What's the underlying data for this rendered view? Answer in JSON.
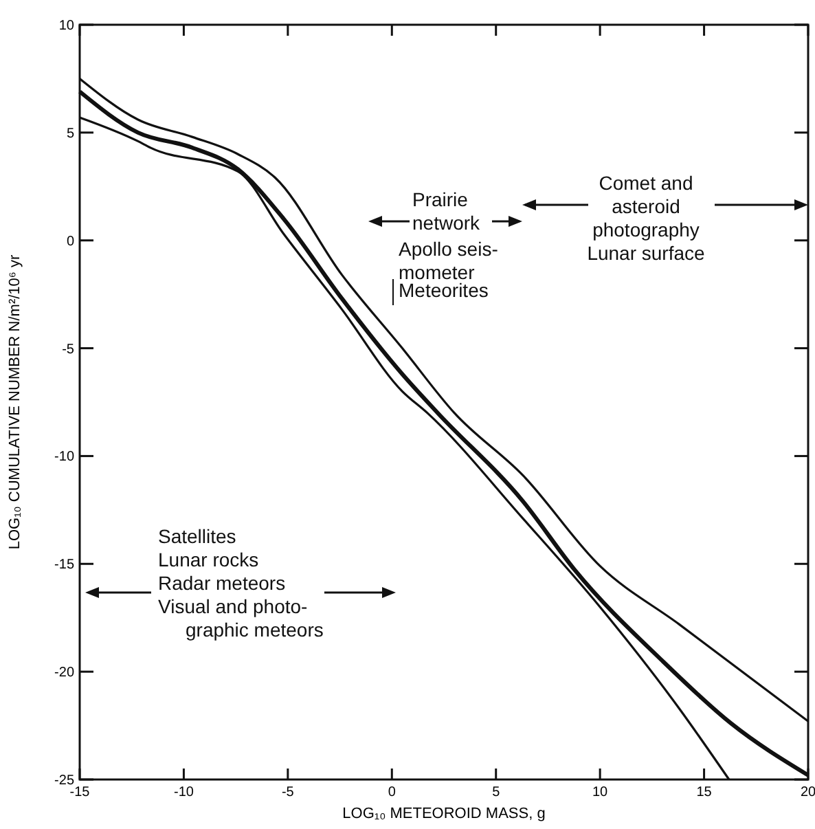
{
  "chart_data": {
    "type": "line",
    "xlabel": "LOG₁₀ METEOROID MASS, g",
    "ylabel": "LOG₁₀ CUMULATIVE NUMBER N/m²/10⁶ yr",
    "xlim": [
      -15,
      20
    ],
    "ylim": [
      -25,
      10
    ],
    "xticks": [
      -15,
      -10,
      -5,
      0,
      5,
      10,
      15,
      20
    ],
    "yticks": [
      -25,
      -20,
      -15,
      -10,
      -5,
      0,
      5,
      10
    ],
    "grid": false,
    "marker": "none",
    "line_style": "solid",
    "series": [
      {
        "color": "#111111",
        "x": [
          -15,
          -12.2,
          -9.6,
          -7.4,
          -5.6,
          -2.4,
          0.5,
          3,
          6.3,
          10,
          13.8,
          20
        ],
        "values": [
          7.5,
          5.6,
          4.8,
          4.0,
          2.9,
          -1.6,
          -5.0,
          -8.0,
          -10.9,
          -15.1,
          -17.8,
          -22.3
        ]
      },
      {
        "color": "#111111",
        "x": [
          -15,
          -12.2,
          -9.6,
          -7.4,
          -5.2,
          -2.4,
          0.5,
          2.2,
          6.3,
          8.8,
          13,
          16.3,
          20
        ],
        "values": [
          6.9,
          5.0,
          4.3,
          3.3,
          1.0,
          -2.7,
          -6.2,
          -8.0,
          -12.1,
          -15.3,
          -19.5,
          -22.4,
          -24.8
        ]
      },
      {
        "color": "#111111",
        "x": [
          -15,
          -12.2,
          -11.6,
          -7.4,
          -5.2,
          -2.4,
          0.5,
          1.7,
          6.3,
          10,
          13.8,
          16.2
        ],
        "values": [
          5.7,
          4.6,
          4.3,
          3.2,
          0.3,
          -3.2,
          -7.0,
          -8.0,
          -12.9,
          -17.0,
          -21.7,
          -25
        ]
      }
    ],
    "annotations": [
      "Prairie\nnetwork",
      "Apollo seis-\nmometer",
      "Meteorites",
      "Comet and\nasteroid\nphotography\nLunar surface",
      "Satellites\nLunar rocks\nRadar meteors\nVisual and photo-\ngraphic meteors"
    ]
  }
}
